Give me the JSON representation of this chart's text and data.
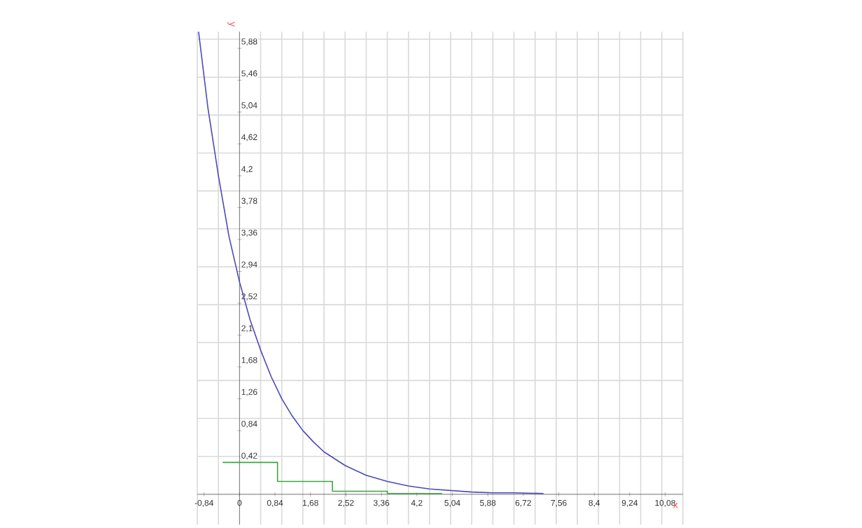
{
  "chart_data": {
    "type": "line",
    "xlabel": "x",
    "ylabel": "y",
    "xlim": [
      -1,
      10.5
    ],
    "ylim": [
      -0.4,
      6.1
    ],
    "grid": true,
    "marker": "none",
    "line_style": "solid",
    "xticks": [
      {
        "value": -0.84,
        "label": "-0,84"
      },
      0,
      {
        "value": 0.84,
        "label": "0,84"
      },
      {
        "value": 1.68,
        "label": "1,68"
      },
      {
        "value": 2.52,
        "label": "2,52"
      },
      {
        "value": 3.36,
        "label": "3,36"
      },
      {
        "value": 4.2,
        "label": "4,2"
      },
      {
        "value": 5.04,
        "label": "5,04"
      },
      {
        "value": 5.88,
        "label": "5,88"
      },
      {
        "value": 6.72,
        "label": "6,72"
      },
      {
        "value": 7.56,
        "label": "7,56"
      },
      {
        "value": 8.4,
        "label": "8,4"
      },
      {
        "value": 9.24,
        "label": "9,24"
      },
      {
        "value": 10.08,
        "label": "10,08"
      },
      {
        "value": -1,
        "label": null
      },
      {
        "value": -0.5,
        "label": null
      },
      {
        "value": 0.5,
        "label": null
      },
      {
        "value": 1,
        "label": null
      },
      {
        "value": 1.5,
        "label": null
      },
      {
        "value": 2,
        "label": null
      },
      {
        "value": 2.5,
        "label": null
      },
      {
        "value": 3,
        "label": null
      },
      {
        "value": 3.5,
        "label": null
      },
      {
        "value": 4,
        "label": null
      },
      {
        "value": 4.5,
        "label": null
      },
      {
        "value": 5,
        "label": null
      },
      {
        "value": 5.5,
        "label": null
      },
      {
        "value": 6,
        "label": null
      },
      {
        "value": 6.5,
        "label": null
      },
      {
        "value": 7,
        "label": null
      },
      {
        "value": 7.5,
        "label": null
      },
      {
        "value": 8,
        "label": null
      },
      {
        "value": 8.5,
        "label": null
      },
      {
        "value": 9,
        "label": null
      },
      {
        "value": 9.5,
        "label": null
      },
      {
        "value": 10,
        "label": null
      },
      {
        "value": 10.5,
        "label": null
      }
    ],
    "yticks": [
      {
        "value": 0.42,
        "label": "0,42"
      },
      {
        "value": 0.84,
        "label": "0,84"
      },
      {
        "value": 1.26,
        "label": "1,26"
      },
      {
        "value": 1.68,
        "label": "1,68"
      },
      {
        "value": 2.1,
        "label": "2,1"
      },
      {
        "value": 2.52,
        "label": "2,52"
      },
      {
        "value": 2.94,
        "label": "2,94"
      },
      {
        "value": 3.36,
        "label": "3,36"
      },
      {
        "value": 3.78,
        "label": "3,78"
      },
      {
        "value": 4.2,
        "label": "4,2"
      },
      {
        "value": 4.62,
        "label": "4,62"
      },
      {
        "value": 5.04,
        "label": "5,04"
      },
      {
        "value": 5.46,
        "label": "5,46"
      },
      {
        "value": 5.88,
        "label": "5,88"
      },
      {
        "value": 0.5,
        "label": null
      },
      {
        "value": 1,
        "label": null
      },
      {
        "value": 1.5,
        "label": null
      },
      {
        "value": 2,
        "label": null
      },
      {
        "value": 2.5,
        "label": null
      },
      {
        "value": 3,
        "label": null
      },
      {
        "value": 3.5,
        "label": null
      },
      {
        "value": 4,
        "label": null
      },
      {
        "value": 4.5,
        "label": null
      },
      {
        "value": 5,
        "label": null
      },
      {
        "value": 5.5,
        "label": null
      },
      {
        "value": 6,
        "label": null
      }
    ],
    "series": [
      {
        "color": "#4a4ab8",
        "x": [
          -0.97,
          -0.75,
          -0.5,
          -0.25,
          0,
          0.25,
          0.5,
          0.75,
          1,
          1.25,
          1.5,
          1.75,
          2,
          2.5,
          3,
          3.5,
          4,
          4.5,
          5,
          5.5,
          6,
          6.5,
          7.2
        ],
        "values": [
          6.1,
          5.1,
          4.2,
          3.4,
          2.8,
          2.3,
          1.9,
          1.55,
          1.26,
          1.03,
          0.84,
          0.69,
          0.56,
          0.38,
          0.25,
          0.17,
          0.11,
          0.07,
          0.05,
          0.03,
          0.02,
          0.02,
          0.01
        ]
      },
      {
        "type": "step",
        "color": "#3aa83a",
        "x": [
          -0.4,
          0.9,
          2.2,
          3.5,
          4.8
        ],
        "values": [
          0.42,
          0.42,
          0.17,
          0.04,
          0.01
        ]
      }
    ]
  }
}
